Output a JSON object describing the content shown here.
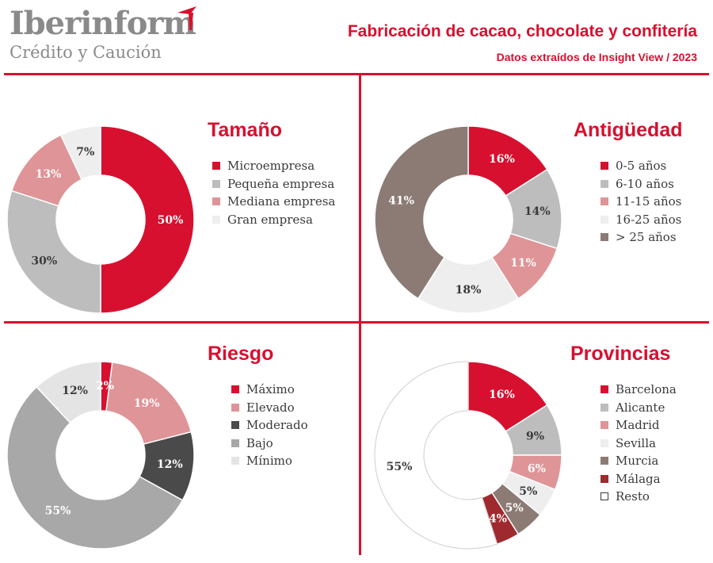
{
  "header": {
    "logo_main": "Iberinform",
    "logo_sub": "Crédito y Caución",
    "title": "Fabricación de cacao, chocolate y confitería",
    "subtitle": "Datos extraídos de Insight View / 2023"
  },
  "colors": {
    "brand": "#d7102f",
    "text": "#3a3a3a",
    "logo": "#8a8a8a"
  },
  "chart_data": [
    {
      "type": "pie",
      "title": "Tamaño",
      "categories": [
        "Microempresa",
        "Pequeña empresa",
        "Mediana empresa",
        "Gran empresa"
      ],
      "values": [
        50,
        30,
        13,
        7
      ],
      "labels": [
        "50%",
        "30%",
        "13%",
        "7%"
      ],
      "colors": [
        "#d7102f",
        "#bdbdbd",
        "#df9497",
        "#eeeeee"
      ],
      "label_colors": [
        "#ffffff",
        "#3a3a3a",
        "#ffffff",
        "#3a3a3a"
      ],
      "legend": "right"
    },
    {
      "type": "pie",
      "title": "Antigüedad",
      "categories": [
        "0-5 años",
        "6-10 años",
        "11-15 años",
        "16-25 años",
        "> 25 años"
      ],
      "values": [
        16,
        14,
        11,
        18,
        41
      ],
      "labels": [
        "16%",
        "14%",
        "11%",
        "18%",
        "41%"
      ],
      "colors": [
        "#d7102f",
        "#bdbdbd",
        "#df9497",
        "#eeeeee",
        "#8c7b75"
      ],
      "label_colors": [
        "#ffffff",
        "#3a3a3a",
        "#ffffff",
        "#3a3a3a",
        "#ffffff"
      ],
      "legend": "right"
    },
    {
      "type": "pie",
      "title": "Riesgo",
      "categories": [
        "Máximo",
        "Elevado",
        "Moderado",
        "Bajo",
        "Mínimo"
      ],
      "values": [
        2,
        19,
        12,
        55,
        12
      ],
      "labels": [
        "2%",
        "19%",
        "12%",
        "55%",
        "12%"
      ],
      "colors": [
        "#d7102f",
        "#df9497",
        "#4a4a4a",
        "#a8a8a8",
        "#e4e4e4"
      ],
      "label_colors": [
        "#ffffff",
        "#ffffff",
        "#ffffff",
        "#ffffff",
        "#3a3a3a"
      ],
      "legend": "right"
    },
    {
      "type": "pie",
      "title": "Provincias",
      "categories": [
        "Barcelona",
        "Alicante",
        "Madrid",
        "Sevilla",
        "Murcia",
        "Málaga",
        "Resto"
      ],
      "values": [
        16,
        9,
        6,
        5,
        5,
        4,
        55
      ],
      "labels": [
        "16%",
        "9%",
        "6%",
        "5%",
        "5%",
        "4%",
        "55%"
      ],
      "colors": [
        "#d7102f",
        "#bdbdbd",
        "#df9497",
        "#eeeeee",
        "#8c7b75",
        "#9e2a2f",
        "#ffffff"
      ],
      "label_colors": [
        "#ffffff",
        "#3a3a3a",
        "#ffffff",
        "#3a3a3a",
        "#ffffff",
        "#ffffff",
        "#3a3a3a"
      ],
      "legend": "right"
    }
  ]
}
